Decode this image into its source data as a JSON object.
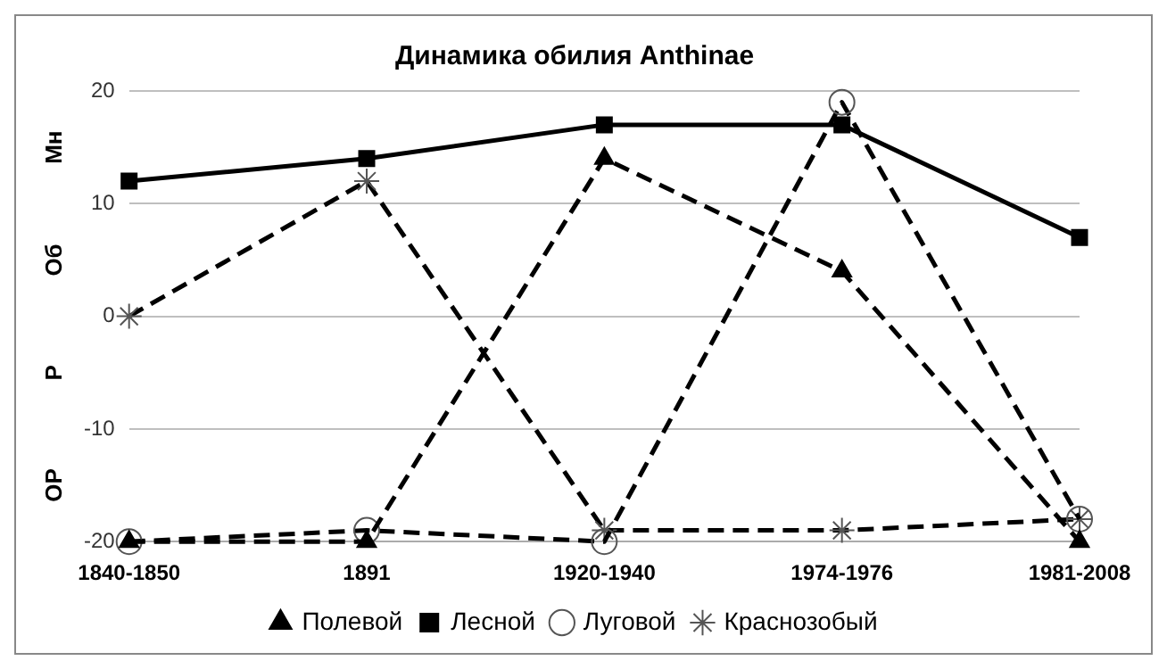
{
  "chart_data": {
    "type": "line",
    "title": "Динамика обилия Anthinae",
    "categories": [
      "1840-1850",
      "1891",
      "1920-1940",
      "1974-1976",
      "1981-2008"
    ],
    "series": [
      {
        "name": "Полевой",
        "color": "#000000",
        "values": [
          -20,
          -20,
          14,
          4,
          -20
        ],
        "marker": "triangle",
        "line_style": "dashed"
      },
      {
        "name": "Лесной",
        "color": "#000000",
        "values": [
          12,
          14,
          17,
          17,
          7
        ],
        "marker": "square",
        "line_style": "solid"
      },
      {
        "name": "Луговой",
        "color": "#000000",
        "values": [
          -20,
          -19,
          -20,
          19,
          -18
        ],
        "marker": "circle",
        "line_style": "dashed"
      },
      {
        "name": "Краснозобый",
        "color": "#000000",
        "values": [
          0,
          12,
          -19,
          -19,
          -18
        ],
        "marker": "cross",
        "line_style": "dashed"
      }
    ],
    "ylim": [
      -20,
      20
    ],
    "yticks": [
      -20,
      -10,
      0,
      10,
      20
    ],
    "grid": "y",
    "legend": "bottom",
    "annotations": [
      "Мн",
      "Об",
      "Р",
      "ОР"
    ]
  }
}
